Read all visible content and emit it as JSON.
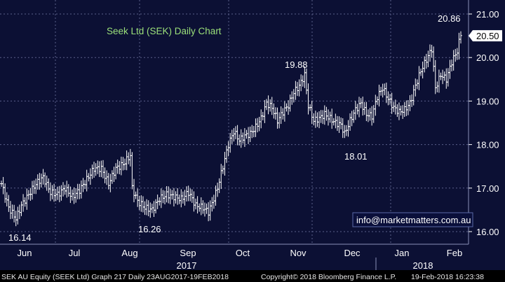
{
  "colors": {
    "background": "#000000",
    "plot_background": "#0c1034",
    "grid": "#5a5f8a",
    "bars": "#ffffff",
    "title": "#9be07a",
    "annotation": "#ffffff",
    "axis_text": "#ffffff",
    "last_price_box": "#ffffff",
    "last_price_text": "#000000",
    "footer_bg": "#000000",
    "footer_text": "#e6e6e6",
    "watermark_border": "#5a6aa8",
    "watermark_bg": "#0a0f3a"
  },
  "watermark": "info@marketmatters.com.au",
  "footer": {
    "left": "SEK AU Equity (SEEK Ltd) Graph 217  Daily 23AUG2017-19FEB2018",
    "center": "Copyright© 2018 Bloomberg Finance L.P.",
    "right": "19-Feb-2018 16:23:38"
  },
  "chart_data": {
    "type": "ohlc",
    "title": "Seek Ltd (SEK) Daily Chart",
    "xlabel": "",
    "ylabel": "",
    "ylim": [
      15.8,
      21.1
    ],
    "y_ticks": [
      "16.00",
      "17.00",
      "18.00",
      "19.00",
      "20.00",
      "21.00"
    ],
    "y_tick_values": [
      16,
      17,
      18,
      19,
      20,
      21
    ],
    "x_month_labels": [
      "Jun",
      "Jul",
      "Aug",
      "Sep",
      "Oct",
      "Nov",
      "Dec",
      "Jan",
      "Feb"
    ],
    "x_year_labels": [
      "2017",
      "2018"
    ],
    "grid": true,
    "last_price": "20.50",
    "annotations": [
      {
        "text": "16.14",
        "value": 16.14
      },
      {
        "text": "16.26",
        "value": 16.26
      },
      {
        "text": "19.88",
        "value": 19.88
      },
      {
        "text": "18.01",
        "value": 18.01
      },
      {
        "text": "20.86",
        "value": 20.86
      }
    ],
    "anchor_points": [
      [
        0,
        17.1
      ],
      [
        4,
        16.55
      ],
      [
        8,
        16.3
      ],
      [
        11,
        16.6
      ],
      [
        15,
        16.85
      ],
      [
        19,
        17.1
      ],
      [
        23,
        17.25
      ],
      [
        27,
        16.9
      ],
      [
        31,
        16.85
      ],
      [
        35,
        17.0
      ],
      [
        39,
        16.8
      ],
      [
        43,
        16.95
      ],
      [
        47,
        17.2
      ],
      [
        51,
        17.45
      ],
      [
        55,
        17.45
      ],
      [
        59,
        17.1
      ],
      [
        63,
        17.45
      ],
      [
        67,
        17.55
      ],
      [
        71,
        17.75
      ],
      [
        72,
        17.0
      ],
      [
        75,
        16.7
      ],
      [
        79,
        16.55
      ],
      [
        83,
        16.5
      ],
      [
        87,
        16.75
      ],
      [
        91,
        16.85
      ],
      [
        95,
        16.8
      ],
      [
        99,
        16.75
      ],
      [
        103,
        16.9
      ],
      [
        107,
        16.6
      ],
      [
        111,
        16.55
      ],
      [
        114,
        16.45
      ],
      [
        116,
        16.65
      ],
      [
        119,
        17.0
      ],
      [
        122,
        17.5
      ],
      [
        125,
        18.0
      ],
      [
        128,
        18.3
      ],
      [
        131,
        18.1
      ],
      [
        134,
        18.2
      ],
      [
        137,
        18.25
      ],
      [
        140,
        18.4
      ],
      [
        143,
        18.6
      ],
      [
        146,
        18.95
      ],
      [
        149,
        18.85
      ],
      [
        152,
        18.55
      ],
      [
        155,
        18.75
      ],
      [
        158,
        18.9
      ],
      [
        161,
        19.2
      ],
      [
        164,
        19.35
      ],
      [
        167,
        19.6
      ],
      [
        169,
        18.9
      ],
      [
        172,
        18.55
      ],
      [
        175,
        18.6
      ],
      [
        178,
        18.7
      ],
      [
        181,
        18.6
      ],
      [
        184,
        18.5
      ],
      [
        187,
        18.45
      ],
      [
        189,
        18.25
      ],
      [
        192,
        18.55
      ],
      [
        195,
        18.8
      ],
      [
        198,
        18.95
      ],
      [
        201,
        18.7
      ],
      [
        204,
        18.65
      ],
      [
        207,
        19.1
      ],
      [
        210,
        19.3
      ],
      [
        213,
        19.05
      ],
      [
        216,
        18.85
      ],
      [
        219,
        18.75
      ],
      [
        222,
        18.8
      ],
      [
        225,
        18.95
      ],
      [
        228,
        19.35
      ],
      [
        231,
        19.7
      ],
      [
        234,
        19.95
      ],
      [
        237,
        20.2
      ],
      [
        239,
        19.3
      ],
      [
        242,
        19.6
      ],
      [
        245,
        19.5
      ],
      [
        248,
        19.9
      ],
      [
        251,
        20.15
      ],
      [
        253,
        20.55
      ]
    ],
    "plot_window": {
      "x_tick_fractions": [
        0.026,
        0.147,
        0.265,
        0.387,
        0.502,
        0.617,
        0.735,
        0.845,
        0.954
      ]
    }
  }
}
